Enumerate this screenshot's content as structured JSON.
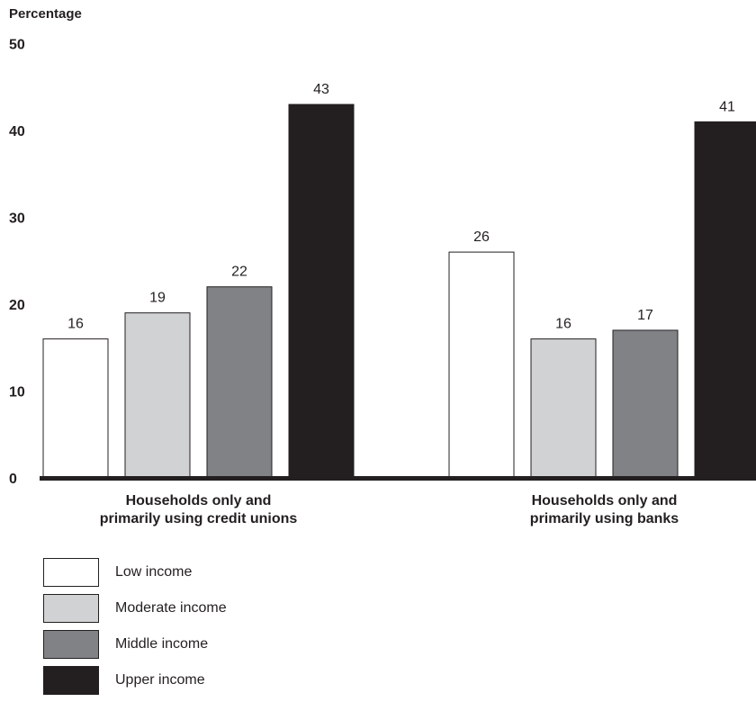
{
  "chart_data": {
    "type": "bar",
    "ylabel": "Percentage",
    "ylim": [
      0,
      50
    ],
    "yticks": [
      0,
      10,
      20,
      30,
      40,
      50
    ],
    "grid": false,
    "legend_position": "bottom-left",
    "categories": [
      [
        "Households only and",
        "primarily using credit unions"
      ],
      [
        "Households only and",
        "primarily using banks"
      ]
    ],
    "series": [
      {
        "name": "Low income",
        "color": "#ffffff",
        "values": [
          16,
          26
        ]
      },
      {
        "name": "Moderate income",
        "color": "#d1d2d4",
        "values": [
          19,
          16
        ]
      },
      {
        "name": "Middle income",
        "color": "#808285",
        "values": [
          22,
          17
        ]
      },
      {
        "name": "Upper income",
        "color": "#231f20",
        "values": [
          43,
          41
        ]
      }
    ]
  }
}
